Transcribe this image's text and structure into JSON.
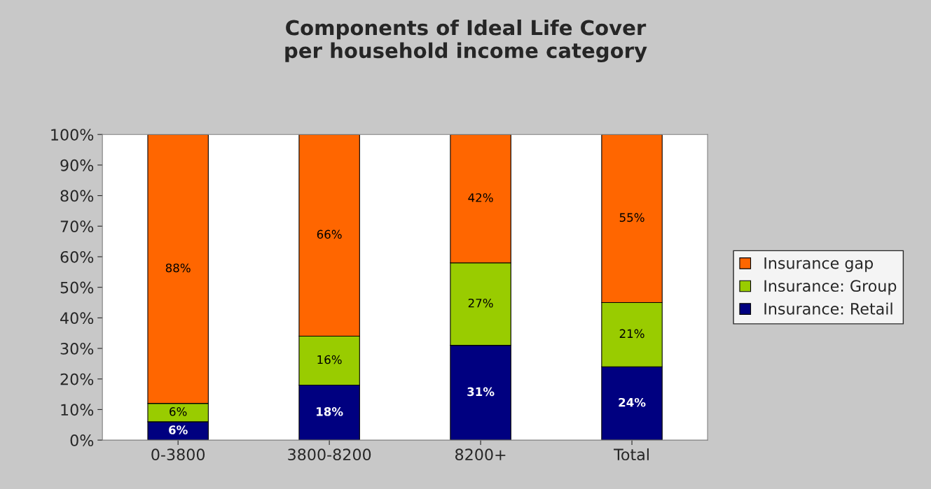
{
  "chart_data": {
    "type": "bar",
    "title": "Components of Ideal Life Cover\nper household income category",
    "categories": [
      "0-3800",
      "3800-8200",
      "8200+",
      "Total"
    ],
    "stacked": true,
    "series": [
      {
        "name": "Insurance: Retail",
        "color": "#000080",
        "values": [
          6,
          18,
          31,
          24
        ],
        "value_labels": [
          "6%",
          "18%",
          "31%",
          "24%"
        ]
      },
      {
        "name": "Insurance: Group",
        "color": "#99cc00",
        "values": [
          6,
          16,
          27,
          21
        ],
        "value_labels": [
          "6%",
          "16%",
          "27%",
          "21%"
        ]
      },
      {
        "name": "Insurance gap",
        "color": "#ff6600",
        "values": [
          88,
          66,
          42,
          55
        ],
        "value_labels": [
          "88%",
          "66%",
          "42%",
          "55%"
        ]
      }
    ],
    "ylim": [
      0,
      100
    ],
    "yticks": [
      {
        "value": 0,
        "label": "0%"
      },
      {
        "value": 10,
        "label": "10%"
      },
      {
        "value": 20,
        "label": "20%"
      },
      {
        "value": 30,
        "label": "30%"
      },
      {
        "value": 40,
        "label": "40%"
      },
      {
        "value": 50,
        "label": "50%"
      },
      {
        "value": 60,
        "label": "60%"
      },
      {
        "value": 70,
        "label": "70%"
      },
      {
        "value": 80,
        "label": "80%"
      },
      {
        "value": 90,
        "label": "90%"
      },
      {
        "value": 100,
        "label": "100%"
      }
    ],
    "grid": false,
    "legend": "right"
  }
}
